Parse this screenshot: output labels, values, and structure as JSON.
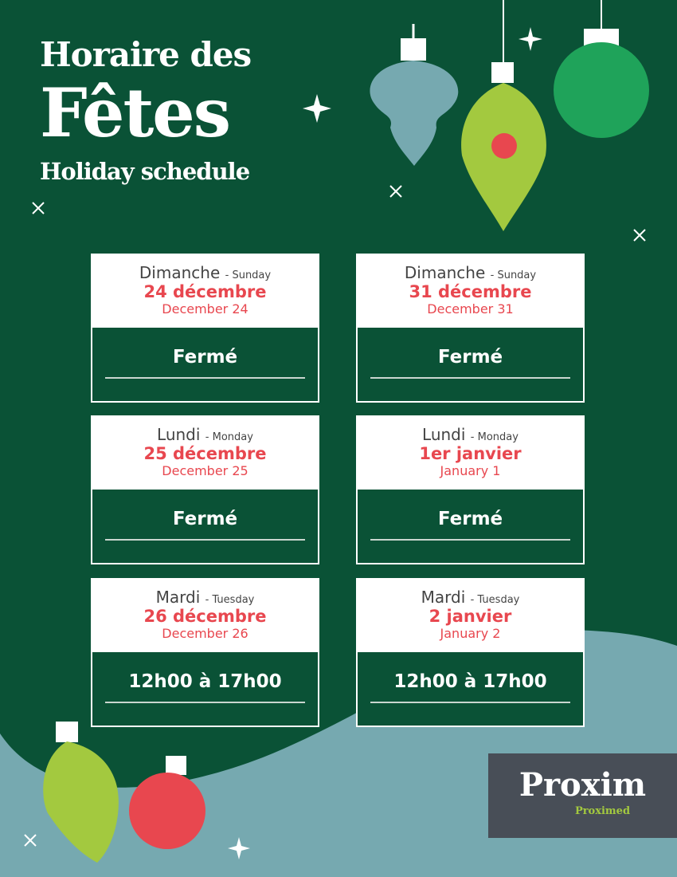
{
  "header": {
    "line1": "Horaire des",
    "line2": "Fêtes",
    "line3": "Holiday schedule"
  },
  "colors": {
    "background": "#0a5236",
    "accent_red": "#e8474f",
    "lime": "#a3c93f",
    "teal": "#76a9b0"
  },
  "cards": [
    {
      "day_fr": "Dimanche",
      "day_en": "- Sunday",
      "date_fr": "24 décembre",
      "date_en": "December 24",
      "hours": "Fermé"
    },
    {
      "day_fr": "Dimanche",
      "day_en": "- Sunday",
      "date_fr": "31 décembre",
      "date_en": "December 31",
      "hours": "Fermé"
    },
    {
      "day_fr": "Lundi",
      "day_en": "- Monday",
      "date_fr": "25 décembre",
      "date_en": "December 25",
      "hours": "Fermé"
    },
    {
      "day_fr": "Lundi",
      "day_en": "- Monday",
      "date_fr": "1er janvier",
      "date_en": "January 1",
      "hours": "Fermé"
    },
    {
      "day_fr": "Mardi",
      "day_en": "- Tuesday",
      "date_fr": "26 décembre",
      "date_en": "December 26",
      "hours": "12h00 à 17h00"
    },
    {
      "day_fr": "Mardi",
      "day_en": "- Tuesday",
      "date_fr": "2 janvier",
      "date_en": "January 2",
      "hours": "12h00 à 17h00"
    }
  ],
  "logo": {
    "brand": "Proxim",
    "sub": "Proximed"
  }
}
